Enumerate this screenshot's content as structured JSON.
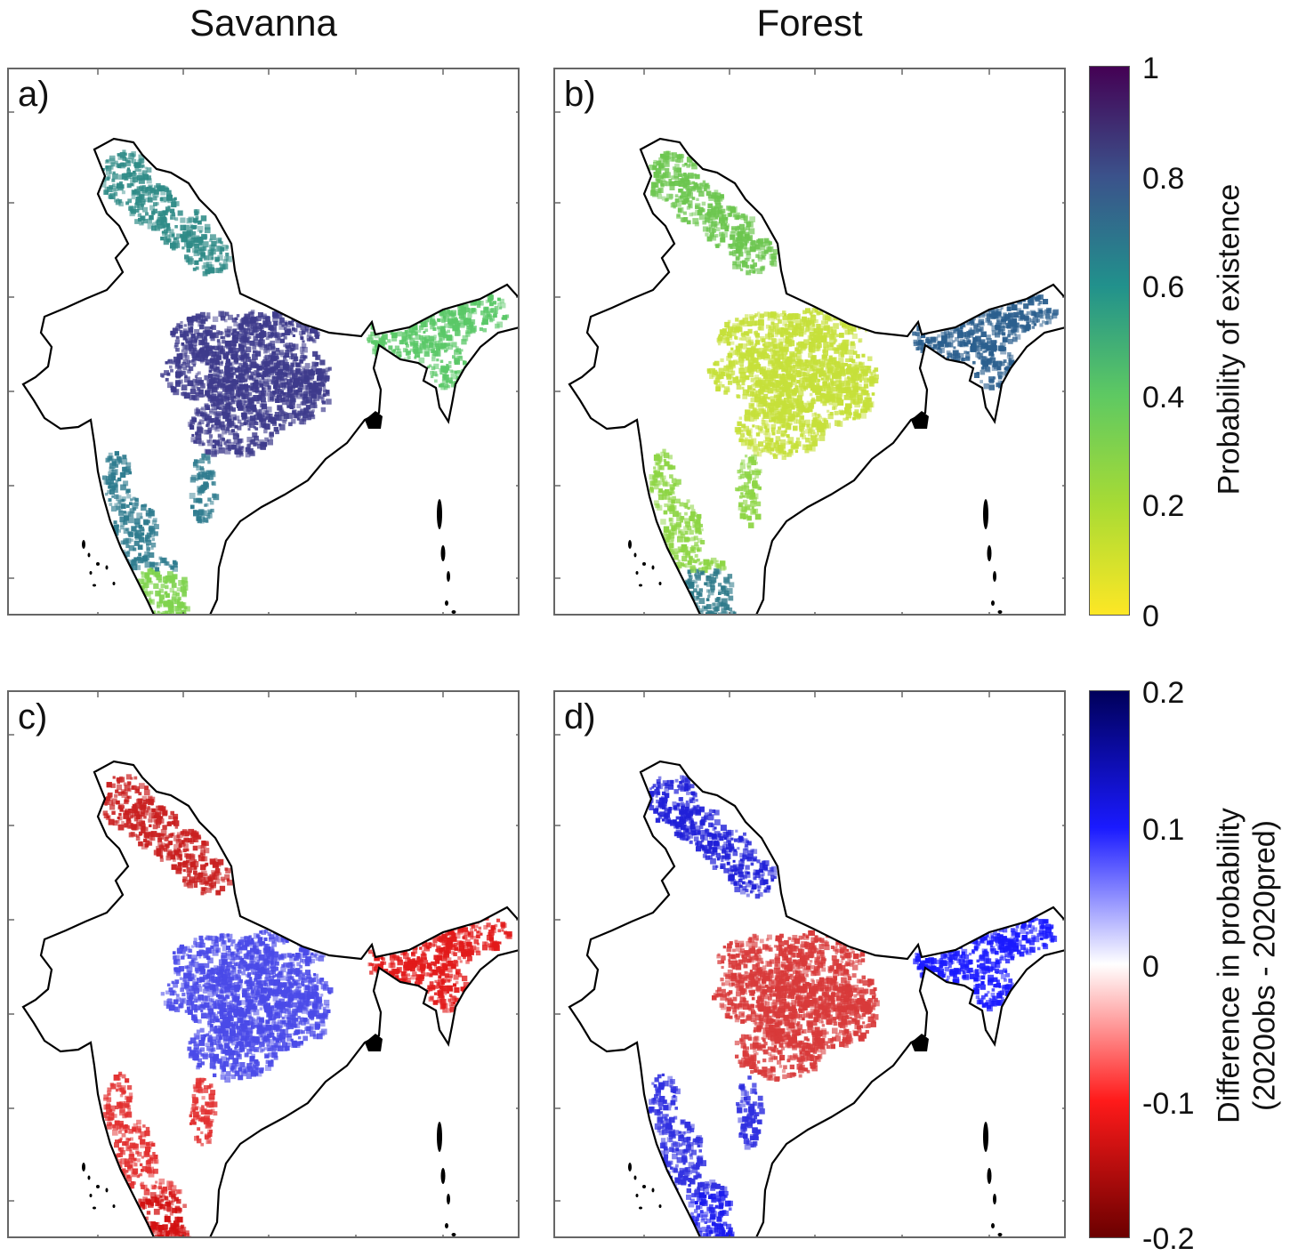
{
  "columns": {
    "left": "Savanna",
    "right": "Forest"
  },
  "panels": [
    {
      "label": "a)",
      "column": "Savanna",
      "scale": "probability"
    },
    {
      "label": "b)",
      "column": "Forest",
      "scale": "probability"
    },
    {
      "label": "c)",
      "column": "Savanna",
      "scale": "difference"
    },
    {
      "label": "d)",
      "column": "Forest",
      "scale": "difference"
    }
  ],
  "colorbar_top": {
    "title": "Probability of existence",
    "ticks": [
      "1",
      "0.8",
      "0.6",
      "0.4",
      "0.2",
      "0"
    ],
    "range": [
      0,
      1
    ],
    "colors": [
      "#fde725",
      "#a8db34",
      "#5ec962",
      "#21918c",
      "#3b528b",
      "#440154"
    ]
  },
  "colorbar_bottom": {
    "title_line1": "Difference in probability",
    "title_line2": "(2020obs - 2020pred)",
    "ticks": [
      "0.2",
      "0.1",
      "0",
      "-0.1",
      "-0.2"
    ],
    "range": [
      -0.2,
      0.2
    ],
    "colors": [
      "#6b0000",
      "#ff1a1a",
      "#ffffff",
      "#1a1aff",
      "#00005a"
    ]
  }
}
